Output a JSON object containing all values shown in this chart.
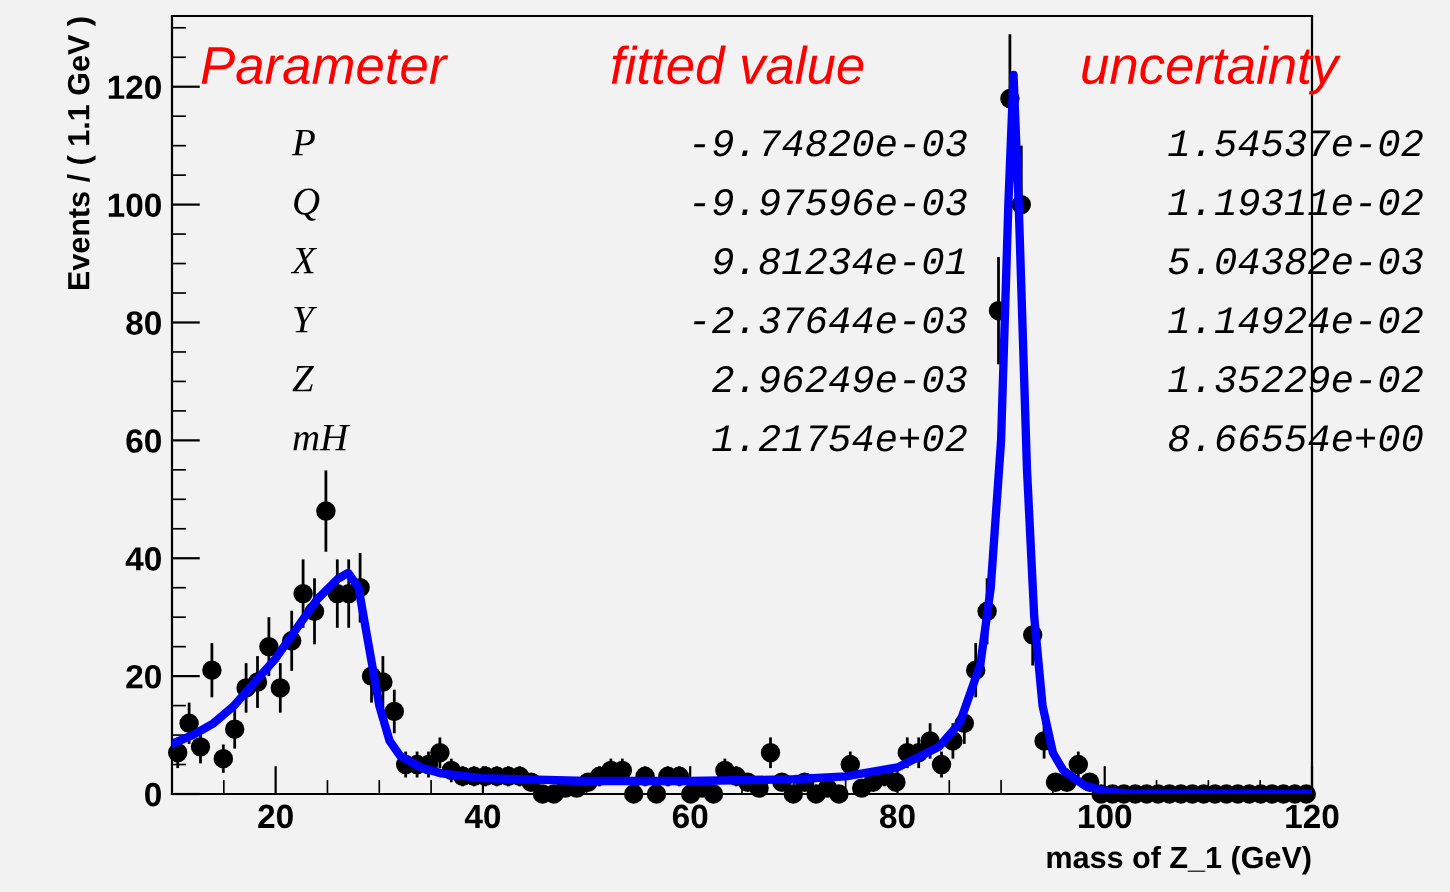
{
  "chart_data": {
    "type": "scatter",
    "xlabel": "mass of Z_1 (GeV)",
    "ylabel": "Events / ( 1.1 GeV )",
    "xlim": [
      10,
      120
    ],
    "xticks": [
      20,
      40,
      60,
      80,
      100,
      120
    ],
    "ylim": [
      0,
      132
    ],
    "yticks": [
      0,
      20,
      40,
      60,
      80,
      100,
      120
    ],
    "grid": false,
    "legend": false,
    "marker": "circle",
    "annotations": [
      "Parameter",
      "fitted value",
      "uncertainty",
      "P",
      "-9.74820e-03",
      "1.54537e-02",
      "Q",
      "-9.97596e-03",
      "1.19311e-02",
      "X",
      "9.81234e-01",
      "5.04382e-03",
      "Y",
      "-2.37644e-03",
      "1.14924e-02",
      "Z",
      "2.96249e-03",
      "1.35229e-02",
      "mH",
      "1.21754e+02",
      "8.66554e+00"
    ],
    "series": [
      {
        "color": "#000000",
        "x": [
          10.55,
          11.65,
          12.75,
          13.85,
          14.95,
          16.05,
          17.15,
          18.25,
          19.35,
          20.45,
          21.55,
          22.65,
          23.75,
          24.85,
          25.95,
          27.05,
          28.15,
          29.25,
          30.35,
          31.45,
          32.55,
          33.65,
          34.75,
          35.85,
          36.95,
          38.05,
          39.15,
          40.25,
          41.35,
          42.45,
          43.55,
          44.65,
          45.75,
          46.85,
          47.95,
          49.05,
          50.15,
          51.25,
          52.35,
          53.45,
          54.55,
          55.65,
          56.75,
          57.85,
          58.95,
          60.05,
          61.15,
          62.25,
          63.35,
          64.45,
          65.55,
          66.65,
          67.75,
          68.85,
          69.95,
          71.05,
          72.15,
          73.25,
          74.35,
          75.45,
          76.55,
          77.65,
          78.75,
          79.85,
          80.95,
          82.05,
          83.15,
          84.25,
          85.35,
          86.45,
          87.55,
          88.65,
          89.75,
          90.85,
          91.95,
          93.05,
          94.15,
          95.25,
          96.35,
          97.45,
          98.55,
          99.65,
          100.75,
          101.85,
          102.95,
          104.05,
          105.15,
          106.25,
          107.35,
          108.45,
          109.55,
          110.65,
          111.75,
          112.85,
          113.95,
          115.05,
          116.15,
          117.25,
          118.35,
          119.45
        ],
        "values": [
          7,
          12,
          8,
          21,
          6,
          11,
          18,
          19,
          25,
          18,
          26,
          34,
          31,
          48,
          34,
          34,
          35,
          20,
          19,
          14,
          5,
          5,
          5,
          7,
          4,
          3,
          3,
          3,
          3,
          3,
          3,
          2,
          0,
          0,
          1,
          1,
          2,
          3,
          4,
          4,
          0,
          3,
          0,
          3,
          3,
          0,
          1,
          0,
          4,
          3,
          2,
          1,
          7,
          2,
          0,
          2,
          0,
          1,
          0,
          5,
          1,
          2,
          3,
          2,
          7,
          7,
          9,
          5,
          9,
          12,
          21,
          31,
          82,
          118,
          100,
          27,
          9,
          2,
          2,
          5,
          2,
          0,
          0,
          0,
          0,
          0,
          0,
          0,
          0,
          0,
          0,
          0,
          0,
          0,
          0,
          0,
          0,
          0,
          0,
          0
        ],
        "errors": [
          2.6,
          3.5,
          2.8,
          4.6,
          2.4,
          3.3,
          4.2,
          4.4,
          5,
          4.2,
          5.1,
          5.8,
          5.6,
          6.9,
          5.8,
          5.8,
          5.9,
          4.5,
          4.4,
          3.7,
          2.2,
          2.2,
          2.2,
          2.6,
          2,
          1.7,
          1.7,
          1.7,
          1.7,
          1.7,
          1.7,
          1.4,
          null,
          null,
          1,
          1,
          1.4,
          1.7,
          2,
          2,
          null,
          1.7,
          null,
          1.7,
          1.7,
          null,
          1,
          null,
          2,
          1.7,
          1.4,
          1,
          2.6,
          1.4,
          null,
          1.4,
          null,
          1,
          null,
          2.2,
          1,
          1.4,
          1.7,
          1.4,
          2.6,
          2.6,
          3,
          2.2,
          3,
          3.5,
          4.6,
          5.6,
          9.1,
          10.9,
          10,
          5.2,
          3,
          1.4,
          1.4,
          2.2,
          1.4,
          null,
          null,
          null,
          null,
          null,
          null,
          null,
          null,
          null,
          null,
          null,
          null,
          null,
          null,
          null,
          null,
          null,
          null,
          null
        ]
      },
      {
        "type": "line",
        "marker": "none",
        "color": "#0000ff",
        "x": [
          10,
          12,
          14,
          16,
          18,
          20,
          22,
          24,
          26,
          27,
          28,
          29,
          30,
          31,
          32,
          34,
          36,
          40,
          50,
          60,
          70,
          75,
          80,
          84,
          86,
          88,
          89,
          90,
          90.7,
          91.2,
          91.7,
          92.5,
          93.2,
          94,
          95,
          96,
          98,
          100,
          102,
          120
        ],
        "values": [
          8.5,
          10,
          12,
          15,
          19,
          23,
          28,
          33,
          36.5,
          37.5,
          35,
          25,
          15,
          9,
          6.5,
          4.5,
          3.5,
          2.7,
          2.2,
          2.2,
          2.5,
          3,
          4.5,
          8,
          12,
          22,
          35,
          60,
          100,
          122,
          100,
          55,
          30,
          15,
          7,
          4,
          1.5,
          0.5,
          0.1,
          0
        ]
      }
    ]
  }
}
